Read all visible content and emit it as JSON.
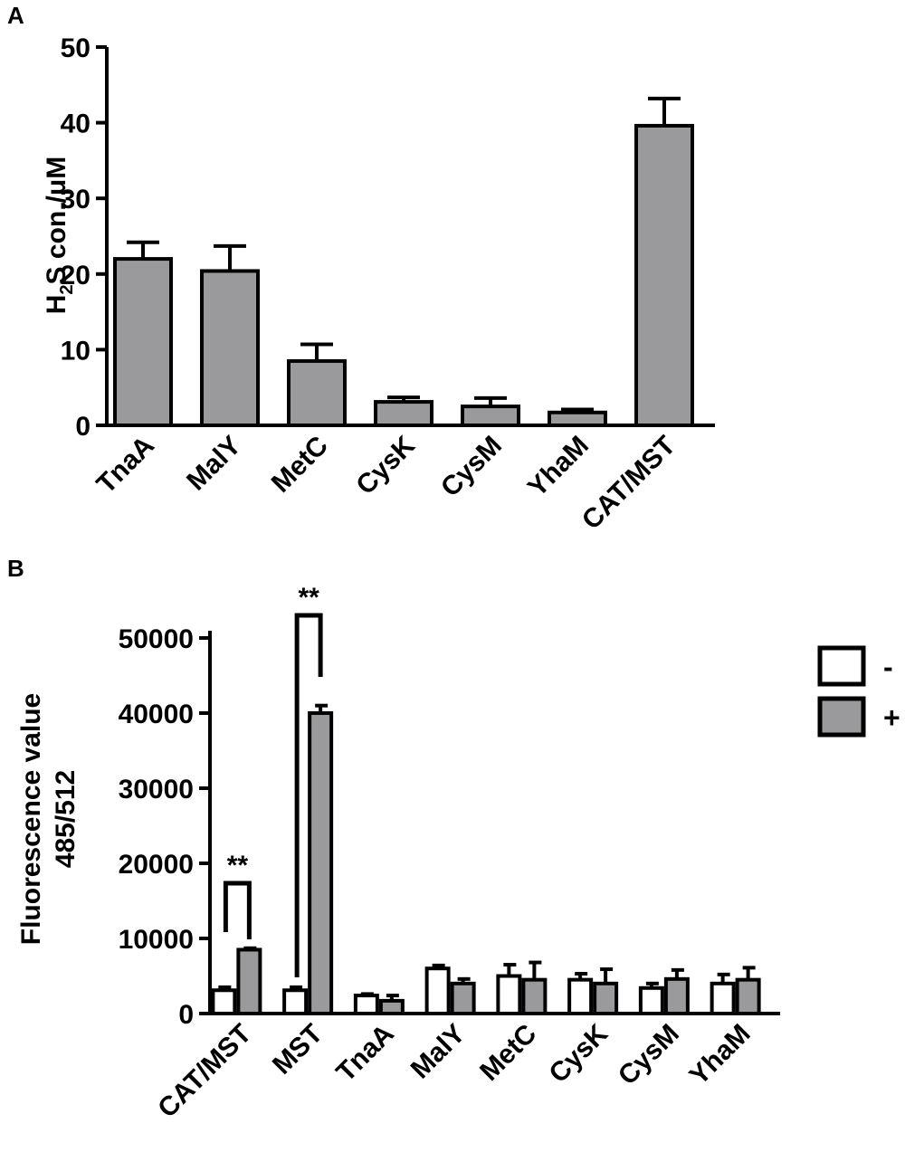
{
  "colors": {
    "bar_fill": "#9a9a9c",
    "bar_fill_empty": "#ffffff",
    "stroke": "#000000"
  },
  "chart_data": [
    {
      "type": "bar",
      "panel": "A",
      "categories": [
        "TnaA",
        "MalY",
        "MetC",
        "CysK",
        "CysM",
        "YhaM",
        "CAT/MST"
      ],
      "values": [
        22,
        20.4,
        8.5,
        3.1,
        2.5,
        1.7,
        39.6
      ],
      "errors": [
        2.2,
        3.3,
        2.2,
        0.6,
        1.1,
        0.4,
        3.6
      ],
      "title": "",
      "xlabel": "",
      "ylabel_main": "H",
      "ylabel_sub": "2",
      "ylabel_rest": "S con./μM",
      "ylim": [
        0,
        50
      ],
      "yticks": [
        "0",
        "10",
        "20",
        "30",
        "40",
        "50"
      ],
      "grid": false
    },
    {
      "type": "bar",
      "panel": "B",
      "categories": [
        "CAT/MST",
        "MST",
        "TnaA",
        "MalY",
        "MetC",
        "CysK",
        "CysM",
        "YhaM"
      ],
      "series": [
        {
          "name": "-",
          "values": [
            3100,
            3100,
            2400,
            6000,
            5000,
            4500,
            3400,
            4000
          ],
          "errors": [
            400,
            400,
            200,
            400,
            1500,
            800,
            600,
            1200
          ]
        },
        {
          "name": "+",
          "values": [
            8500,
            40000,
            1700,
            4000,
            4500,
            4000,
            4600,
            4500
          ],
          "errors": [
            200,
            1000,
            700,
            600,
            2300,
            1900,
            1200,
            1600
          ]
        }
      ],
      "title": "",
      "xlabel": "",
      "ylabel_line1": "Fluorescence value",
      "ylabel_line2": "485/512",
      "ylim": [
        0,
        52000
      ],
      "yticks": [
        "0",
        "10000",
        "20000",
        "30000",
        "40000",
        "50000"
      ],
      "legend": "right",
      "annotations": [
        "**",
        "**"
      ],
      "grid": false
    }
  ]
}
